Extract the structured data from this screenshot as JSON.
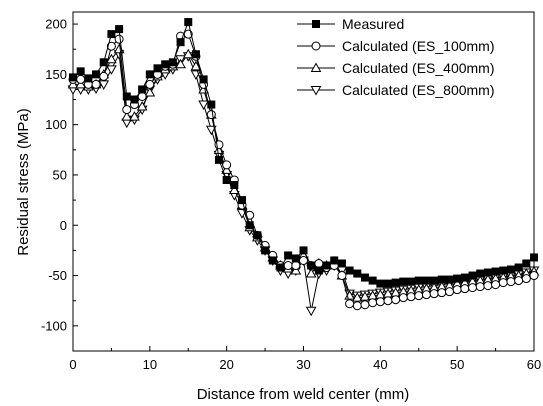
{
  "chart_data": {
    "type": "line",
    "title": "",
    "xlabel": "Distance from weld center (mm)",
    "ylabel": "Residual stress (MPa)",
    "xlim": [
      0,
      60
    ],
    "ylim": [
      -125,
      212
    ],
    "xticks": [
      0,
      10,
      20,
      30,
      40,
      50,
      60
    ],
    "yticks": [
      -100,
      -50,
      0,
      50,
      100,
      150,
      200
    ],
    "grid": false,
    "legend_position": "top-right",
    "series": [
      {
        "name": "Measured",
        "marker": "filled-square",
        "points": [
          [
            0,
            147
          ],
          [
            1,
            153
          ],
          [
            2,
            146
          ],
          [
            3,
            150
          ],
          [
            4,
            162
          ],
          [
            5,
            190
          ],
          [
            6,
            195
          ],
          [
            7,
            128
          ],
          [
            8,
            125
          ],
          [
            9,
            135
          ],
          [
            10,
            150
          ],
          [
            11,
            156
          ],
          [
            12,
            160
          ],
          [
            13,
            162
          ],
          [
            14,
            182
          ],
          [
            15,
            202
          ],
          [
            16,
            170
          ],
          [
            17,
            145
          ],
          [
            18,
            120
          ],
          [
            19,
            65
          ],
          [
            20,
            45
          ],
          [
            21,
            40
          ],
          [
            22,
            25
          ],
          [
            23,
            0
          ],
          [
            24,
            -10
          ],
          [
            25,
            -25
          ],
          [
            26,
            -35
          ],
          [
            27,
            -42
          ],
          [
            28,
            -30
          ],
          [
            29,
            -33
          ],
          [
            30,
            -25
          ],
          [
            31,
            -40
          ],
          [
            32,
            -45
          ],
          [
            33,
            -40
          ],
          [
            34,
            -35
          ],
          [
            35,
            -38
          ],
          [
            36,
            -45
          ],
          [
            37,
            -48
          ],
          [
            38,
            -52
          ],
          [
            39,
            -55
          ],
          [
            40,
            -58
          ],
          [
            41,
            -58
          ],
          [
            42,
            -57
          ],
          [
            43,
            -56
          ],
          [
            44,
            -56
          ],
          [
            45,
            -55
          ],
          [
            46,
            -55
          ],
          [
            47,
            -55
          ],
          [
            48,
            -54
          ],
          [
            49,
            -54
          ],
          [
            50,
            -53
          ],
          [
            51,
            -52
          ],
          [
            52,
            -50
          ],
          [
            53,
            -48
          ],
          [
            54,
            -47
          ],
          [
            55,
            -46
          ],
          [
            56,
            -45
          ],
          [
            57,
            -44
          ],
          [
            58,
            -42
          ],
          [
            59,
            -38
          ],
          [
            60,
            -32
          ]
        ]
      },
      {
        "name": "Calculated (ES_100mm)",
        "marker": "open-circle",
        "points": [
          [
            0,
            145
          ],
          [
            1,
            145
          ],
          [
            2,
            140
          ],
          [
            3,
            140
          ],
          [
            4,
            148
          ],
          [
            5,
            178
          ],
          [
            6,
            185
          ],
          [
            7,
            115
          ],
          [
            8,
            120
          ],
          [
            9,
            128
          ],
          [
            10,
            140
          ],
          [
            11,
            150
          ],
          [
            12,
            158
          ],
          [
            13,
            160
          ],
          [
            14,
            188
          ],
          [
            15,
            190
          ],
          [
            16,
            168
          ],
          [
            17,
            140
          ],
          [
            18,
            110
          ],
          [
            19,
            80
          ],
          [
            20,
            60
          ],
          [
            21,
            45
          ],
          [
            22,
            20
          ],
          [
            23,
            10
          ],
          [
            24,
            -10
          ],
          [
            25,
            -20
          ],
          [
            26,
            -30
          ],
          [
            27,
            -40
          ],
          [
            28,
            -40
          ],
          [
            29,
            -40
          ],
          [
            30,
            -35
          ],
          [
            31,
            -40
          ],
          [
            32,
            -38
          ],
          [
            33,
            -42
          ],
          [
            34,
            -40
          ],
          [
            35,
            -50
          ],
          [
            36,
            -78
          ],
          [
            37,
            -80
          ],
          [
            38,
            -79
          ],
          [
            39,
            -77
          ],
          [
            40,
            -76
          ],
          [
            41,
            -75
          ],
          [
            42,
            -74
          ],
          [
            43,
            -72
          ],
          [
            44,
            -71
          ],
          [
            45,
            -70
          ],
          [
            46,
            -69
          ],
          [
            47,
            -68
          ],
          [
            48,
            -67
          ],
          [
            49,
            -66
          ],
          [
            50,
            -64
          ],
          [
            51,
            -63
          ],
          [
            52,
            -62
          ],
          [
            53,
            -61
          ],
          [
            54,
            -60
          ],
          [
            55,
            -59
          ],
          [
            56,
            -57
          ],
          [
            57,
            -56
          ],
          [
            58,
            -55
          ],
          [
            59,
            -53
          ],
          [
            60,
            -50
          ]
        ]
      },
      {
        "name": "Calculated (ES_400mm)",
        "marker": "open-triangle-up",
        "points": [
          [
            0,
            140
          ],
          [
            1,
            140
          ],
          [
            2,
            138
          ],
          [
            3,
            140
          ],
          [
            4,
            150
          ],
          [
            5,
            165
          ],
          [
            6,
            175
          ],
          [
            7,
            108
          ],
          [
            8,
            108
          ],
          [
            9,
            118
          ],
          [
            10,
            132
          ],
          [
            11,
            148
          ],
          [
            12,
            155
          ],
          [
            13,
            158
          ],
          [
            14,
            160
          ],
          [
            15,
            170
          ],
          [
            16,
            158
          ],
          [
            17,
            135
          ],
          [
            18,
            110
          ],
          [
            19,
            75
          ],
          [
            20,
            55
          ],
          [
            21,
            35
          ],
          [
            22,
            20
          ],
          [
            23,
            -2
          ],
          [
            24,
            -12
          ],
          [
            25,
            -22
          ],
          [
            26,
            -32
          ],
          [
            27,
            -40
          ],
          [
            28,
            -43
          ],
          [
            29,
            -45
          ],
          [
            30,
            -30
          ],
          [
            31,
            -48
          ],
          [
            32,
            -38
          ],
          [
            33,
            -40
          ],
          [
            34,
            -36
          ],
          [
            35,
            -50
          ],
          [
            36,
            -70
          ],
          [
            37,
            -72
          ],
          [
            38,
            -71
          ],
          [
            39,
            -70
          ],
          [
            40,
            -69
          ],
          [
            41,
            -68
          ],
          [
            42,
            -67
          ],
          [
            43,
            -66
          ],
          [
            44,
            -65
          ],
          [
            45,
            -64
          ],
          [
            46,
            -63
          ],
          [
            47,
            -62
          ],
          [
            48,
            -61
          ],
          [
            49,
            -60
          ],
          [
            50,
            -58
          ],
          [
            51,
            -57
          ],
          [
            52,
            -56
          ],
          [
            53,
            -55
          ],
          [
            54,
            -54
          ],
          [
            55,
            -53
          ],
          [
            56,
            -52
          ],
          [
            57,
            -51
          ],
          [
            58,
            -50
          ],
          [
            59,
            -48
          ],
          [
            60,
            -46
          ]
        ]
      },
      {
        "name": "Calculated (ES_800mm)",
        "marker": "open-triangle-down",
        "points": [
          [
            0,
            135
          ],
          [
            1,
            135
          ],
          [
            2,
            135
          ],
          [
            3,
            136
          ],
          [
            4,
            140
          ],
          [
            5,
            155
          ],
          [
            6,
            170
          ],
          [
            7,
            102
          ],
          [
            8,
            105
          ],
          [
            9,
            115
          ],
          [
            10,
            135
          ],
          [
            11,
            145
          ],
          [
            12,
            150
          ],
          [
            13,
            155
          ],
          [
            14,
            165
          ],
          [
            15,
            168
          ],
          [
            16,
            150
          ],
          [
            17,
            120
          ],
          [
            18,
            95
          ],
          [
            19,
            70
          ],
          [
            20,
            50
          ],
          [
            21,
            30
          ],
          [
            22,
            12
          ],
          [
            23,
            -5
          ],
          [
            24,
            -15
          ],
          [
            25,
            -25
          ],
          [
            26,
            -35
          ],
          [
            27,
            -45
          ],
          [
            28,
            -48
          ],
          [
            29,
            -45
          ],
          [
            30,
            -35
          ],
          [
            31,
            -85
          ],
          [
            32,
            -48
          ],
          [
            33,
            -45
          ],
          [
            34,
            -40
          ],
          [
            35,
            -45
          ],
          [
            36,
            -68
          ],
          [
            37,
            -70
          ],
          [
            38,
            -69
          ],
          [
            39,
            -68
          ],
          [
            40,
            -67
          ],
          [
            41,
            -66
          ],
          [
            42,
            -65
          ],
          [
            43,
            -64
          ],
          [
            44,
            -63
          ],
          [
            45,
            -62
          ],
          [
            46,
            -61
          ],
          [
            47,
            -60
          ],
          [
            48,
            -59
          ],
          [
            49,
            -58
          ],
          [
            50,
            -57
          ],
          [
            51,
            -56
          ],
          [
            52,
            -55
          ],
          [
            53,
            -54
          ],
          [
            54,
            -53
          ],
          [
            55,
            -52
          ],
          [
            56,
            -51
          ],
          [
            57,
            -50
          ],
          [
            58,
            -49
          ],
          [
            59,
            -47
          ],
          [
            60,
            -45
          ]
        ]
      }
    ]
  }
}
